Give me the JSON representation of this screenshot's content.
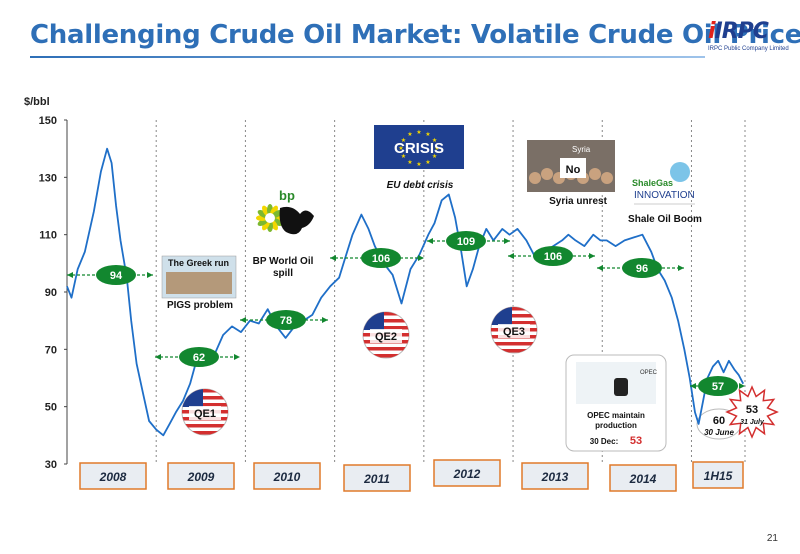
{
  "header": {
    "title": "Challenging Crude Oil Market: Volatile Crude Oil Price"
  },
  "logo": {
    "mark": "IRPC",
    "subtitle": "IRPC Public Company Limited"
  },
  "page_number": "21",
  "colors": {
    "title": "#2e6fb7",
    "line": "#1f6fc8",
    "bubble": "#12872f",
    "year_box_border": "#e07a2a",
    "qe_red": "#d32f2f"
  },
  "chart_data": {
    "type": "line",
    "ylabel": "$/bbl",
    "ylim": [
      30,
      150
    ],
    "yticks": [
      30,
      50,
      70,
      90,
      110,
      130,
      150
    ],
    "year_labels": [
      "2008",
      "2009",
      "2010",
      "2011",
      "2012",
      "2013",
      "2014",
      "1H15"
    ],
    "series": [
      {
        "x": [
          2008.0,
          2008.05,
          2008.12,
          2008.2,
          2008.3,
          2008.38,
          2008.45,
          2008.5,
          2008.55,
          2008.6,
          2008.67,
          2008.72,
          2008.78,
          2008.85,
          2008.92,
          2009.0,
          2009.08,
          2009.15,
          2009.22,
          2009.3,
          2009.38,
          2009.45,
          2009.55,
          2009.65,
          2009.75,
          2009.85,
          2009.95,
          2010.05,
          2010.15,
          2010.25,
          2010.35,
          2010.45,
          2010.55,
          2010.65,
          2010.75,
          2010.85,
          2010.95,
          2011.05,
          2011.12,
          2011.2,
          2011.3,
          2011.38,
          2011.45,
          2011.55,
          2011.65,
          2011.75,
          2011.85,
          2011.95,
          2012.05,
          2012.12,
          2012.2,
          2012.28,
          2012.35,
          2012.42,
          2012.48,
          2012.55,
          2012.62,
          2012.7,
          2012.78,
          2012.88,
          2012.96,
          2013.05,
          2013.15,
          2013.25,
          2013.35,
          2013.45,
          2013.55,
          2013.62,
          2013.7,
          2013.8,
          2013.9,
          2013.98,
          2014.05,
          2014.15,
          2014.25,
          2014.35,
          2014.45,
          2014.55,
          2014.62,
          2014.7,
          2014.78,
          2014.85,
          2014.92,
          2014.98,
          2015.04,
          2015.08,
          2015.13,
          2015.18,
          2015.24,
          2015.3,
          2015.36,
          2015.42,
          2015.48,
          2015.53,
          2015.58
        ],
        "values": [
          92,
          88,
          98,
          104,
          118,
          132,
          140,
          135,
          120,
          108,
          95,
          80,
          65,
          55,
          45,
          42,
          40,
          44,
          48,
          52,
          58,
          66,
          70,
          68,
          75,
          78,
          76,
          80,
          79,
          84,
          78,
          74,
          78,
          80,
          82,
          88,
          92,
          95,
          102,
          110,
          117,
          112,
          106,
          100,
          96,
          86,
          98,
          103,
          110,
          114,
          122,
          124,
          116,
          104,
          92,
          98,
          106,
          112,
          108,
          112,
          110,
          112,
          108,
          102,
          104,
          106,
          108,
          110,
          108,
          106,
          110,
          108,
          108,
          106,
          108,
          109,
          110,
          104,
          98,
          94,
          88,
          80,
          70,
          60,
          48,
          44,
          52,
          60,
          64,
          66,
          62,
          66,
          63,
          61,
          58
        ]
      }
    ],
    "period_bubbles": [
      {
        "label": "94"
      },
      {
        "label": "62"
      },
      {
        "label": "78"
      },
      {
        "label": "106"
      },
      {
        "label": "109"
      },
      {
        "label": "106"
      },
      {
        "label": "96"
      },
      {
        "label": "57"
      }
    ],
    "annotations": {
      "greek_run": "The Greek run",
      "pigs": "PIGS problem",
      "bp_logo": "bp",
      "bp": "BP World Oil spill",
      "crisis": "CRISIS",
      "eu": "EU debt crisis",
      "syria_tag": "Syria",
      "syria_no": "No",
      "syria": "Syria unrest",
      "shale_logo_1": "ShaleGas",
      "shale_logo_2": "INNOVATION",
      "shale": "Shale Oil Boom",
      "qe1": "QE1",
      "qe2": "QE2",
      "qe3": "QE3",
      "opec_tag": "OPEC",
      "opec_line1": "OPEC maintain",
      "opec_line2": "production",
      "opec_date": "30 Dec:",
      "opec_value": "53",
      "low_value": "60",
      "low_date": "30 June",
      "burst_value": "53",
      "burst_date": "31 July"
    }
  }
}
